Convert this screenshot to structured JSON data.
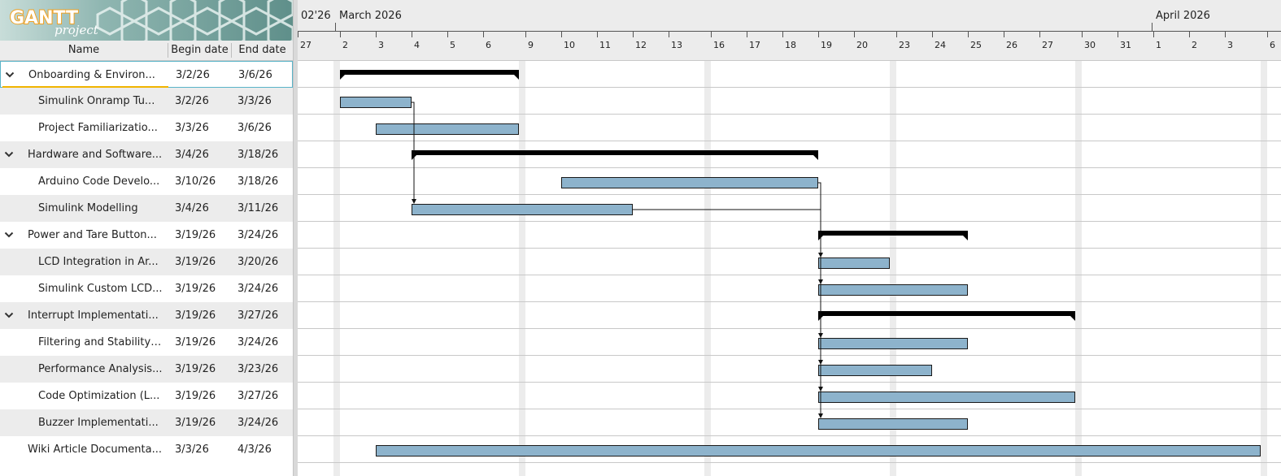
{
  "app": {
    "logo_text_top": "GANTT",
    "logo_text_bottom": "project"
  },
  "columns": {
    "name": "Name",
    "begin": "Begin date",
    "end": "End date"
  },
  "timeline": {
    "year_label": "02'26",
    "months": [
      {
        "label": "March 2026",
        "start": "2026-03-01"
      },
      {
        "label": "April 2026",
        "start": "2026-04-01"
      }
    ],
    "day_ticks": [
      {
        "date": "2026-02-27",
        "label": "27"
      },
      {
        "date": "2026-03-02",
        "label": "2"
      },
      {
        "date": "2026-03-03",
        "label": "3"
      },
      {
        "date": "2026-03-04",
        "label": "4"
      },
      {
        "date": "2026-03-05",
        "label": "5"
      },
      {
        "date": "2026-03-06",
        "label": "6"
      },
      {
        "date": "2026-03-09",
        "label": "9"
      },
      {
        "date": "2026-03-10",
        "label": "10"
      },
      {
        "date": "2026-03-11",
        "label": "11"
      },
      {
        "date": "2026-03-12",
        "label": "12"
      },
      {
        "date": "2026-03-13",
        "label": "13"
      },
      {
        "date": "2026-03-16",
        "label": "16"
      },
      {
        "date": "2026-03-17",
        "label": "17"
      },
      {
        "date": "2026-03-18",
        "label": "18"
      },
      {
        "date": "2026-03-19",
        "label": "19"
      },
      {
        "date": "2026-03-20",
        "label": "20"
      },
      {
        "date": "2026-03-23",
        "label": "23"
      },
      {
        "date": "2026-03-24",
        "label": "24"
      },
      {
        "date": "2026-03-25",
        "label": "25"
      },
      {
        "date": "2026-03-26",
        "label": "26"
      },
      {
        "date": "2026-03-27",
        "label": "27"
      },
      {
        "date": "2026-03-30",
        "label": "30"
      },
      {
        "date": "2026-03-31",
        "label": "31"
      },
      {
        "date": "2026-04-01",
        "label": "1"
      },
      {
        "date": "2026-04-02",
        "label": "2"
      },
      {
        "date": "2026-04-03",
        "label": "3"
      },
      {
        "date": "2026-04-06",
        "label": "6"
      }
    ]
  },
  "tasks": [
    {
      "name": "Onboarding & Environ...",
      "begin_label": "3/2/26",
      "end_label": "3/6/26",
      "level": 0,
      "group": true,
      "selected": true,
      "start": "2026-03-02",
      "end": "2026-03-06"
    },
    {
      "name": "Simulink Onramp  Tu...",
      "begin_label": "3/2/26",
      "end_label": "3/3/26",
      "level": 1,
      "group": false,
      "start": "2026-03-02",
      "end": "2026-03-03"
    },
    {
      "name": "Project Familiarizatio...",
      "begin_label": "3/3/26",
      "end_label": "3/6/26",
      "level": 1,
      "group": false,
      "start": "2026-03-03",
      "end": "2026-03-06"
    },
    {
      "name": "Hardware and Software...",
      "begin_label": "3/4/26",
      "end_label": "3/18/26",
      "level": 0,
      "group": true,
      "start": "2026-03-04",
      "end": "2026-03-18"
    },
    {
      "name": "Arduino Code Develo...",
      "begin_label": "3/10/26",
      "end_label": "3/18/26",
      "level": 1,
      "group": false,
      "start": "2026-03-10",
      "end": "2026-03-18"
    },
    {
      "name": "Simulink Modelling",
      "begin_label": "3/4/26",
      "end_label": "3/11/26",
      "level": 1,
      "group": false,
      "start": "2026-03-04",
      "end": "2026-03-11"
    },
    {
      "name": "Power and Tare Button...",
      "begin_label": "3/19/26",
      "end_label": "3/24/26",
      "level": 0,
      "group": true,
      "start": "2026-03-19",
      "end": "2026-03-24"
    },
    {
      "name": "LCD Integration in Ar...",
      "begin_label": "3/19/26",
      "end_label": "3/20/26",
      "level": 1,
      "group": false,
      "start": "2026-03-19",
      "end": "2026-03-20"
    },
    {
      "name": "Simulink Custom LCD...",
      "begin_label": "3/19/26",
      "end_label": "3/24/26",
      "level": 1,
      "group": false,
      "start": "2026-03-19",
      "end": "2026-03-24"
    },
    {
      "name": "Interrupt Implementati...",
      "begin_label": "3/19/26",
      "end_label": "3/27/26",
      "level": 0,
      "group": true,
      "start": "2026-03-19",
      "end": "2026-03-27"
    },
    {
      "name": "Filtering and Stability ...",
      "begin_label": "3/19/26",
      "end_label": "3/24/26",
      "level": 1,
      "group": false,
      "start": "2026-03-19",
      "end": "2026-03-24"
    },
    {
      "name": "Performance Analysis...",
      "begin_label": "3/19/26",
      "end_label": "3/23/26",
      "level": 1,
      "group": false,
      "start": "2026-03-19",
      "end": "2026-03-23"
    },
    {
      "name": "Code Optimization (L...",
      "begin_label": "3/19/26",
      "end_label": "3/27/26",
      "level": 1,
      "group": false,
      "start": "2026-03-19",
      "end": "2026-03-27"
    },
    {
      "name": "Buzzer Implementati...",
      "begin_label": "3/19/26",
      "end_label": "3/24/26",
      "level": 1,
      "group": false,
      "start": "2026-03-19",
      "end": "2026-03-24"
    },
    {
      "name": "Wiki Article Documenta...",
      "begin_label": "3/3/26",
      "end_label": "4/3/26",
      "level": 0,
      "group": false,
      "start": "2026-03-03",
      "end": "2026-04-03"
    }
  ],
  "dependencies": [
    {
      "from": 1,
      "to": 5
    },
    {
      "from": 4,
      "to": 7
    },
    {
      "from": 5,
      "to": 8
    },
    {
      "from": 4,
      "to": 10
    },
    {
      "from": 4,
      "to": 11
    },
    {
      "from": 4,
      "to": 12
    },
    {
      "from": 4,
      "to": 13
    }
  ],
  "colors": {
    "task_bar": "#8db3cc",
    "task_border": "#1a1a1a",
    "summary_bar": "#000000",
    "weekend": "#ececec",
    "grid": "#c8c8c8",
    "header_bg": "#ececec",
    "row_alt": "#ececec",
    "logo_orange": "#f0a020",
    "logo_bg": "#6e9c98"
  }
}
